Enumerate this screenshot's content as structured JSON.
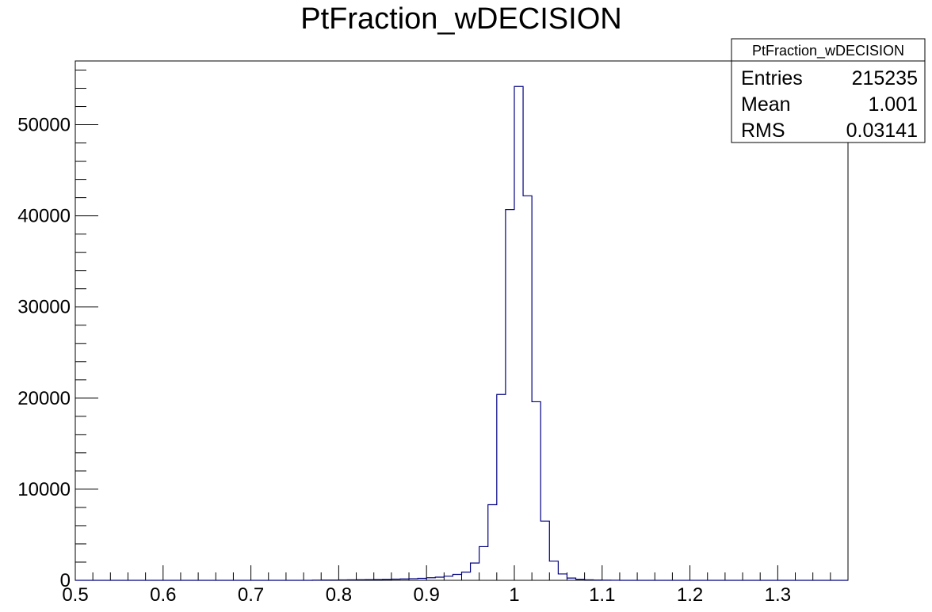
{
  "chart_data": {
    "type": "bar",
    "histogram": true,
    "title": "PtFraction_wDECISION",
    "xlabel": "",
    "ylabel": "",
    "xlim": [
      0.5,
      1.38
    ],
    "ylim": [
      0,
      57000
    ],
    "bin_width": 0.01,
    "first_bin_low_edge": 0.5,
    "x_ticks": [
      "0.5",
      "0.6",
      "0.7",
      "0.8",
      "0.9",
      "1",
      "1.1",
      "1.2",
      "1.3"
    ],
    "y_ticks": [
      "0",
      "10000",
      "20000",
      "30000",
      "40000",
      "50000"
    ],
    "values": [
      0,
      0,
      0,
      0,
      0,
      0,
      0,
      0,
      0,
      0,
      0,
      0,
      0,
      0,
      0,
      0,
      0,
      0,
      0,
      0,
      0,
      0,
      0,
      0,
      0,
      0,
      0,
      20,
      30,
      40,
      50,
      60,
      70,
      80,
      90,
      110,
      130,
      150,
      180,
      220,
      280,
      350,
      450,
      650,
      900,
      1900,
      3700,
      8300,
      20400,
      40700,
      54200,
      42200,
      19600,
      6500,
      2100,
      700,
      250,
      120,
      60,
      30,
      20,
      10,
      0,
      0,
      0,
      0,
      0,
      0,
      0,
      0,
      0,
      0,
      0,
      0,
      0,
      0,
      0,
      0,
      0,
      0,
      0,
      0,
      0,
      0,
      0,
      0,
      0,
      0
    ],
    "grid": false,
    "legend": "stats box, top-right",
    "line_color": "#000080"
  },
  "stats_box": {
    "title": "PtFraction_wDECISION",
    "rows": [
      {
        "label": "Entries",
        "value": "215235"
      },
      {
        "label": "Mean",
        "value": "1.001"
      },
      {
        "label": "RMS",
        "value": "0.03141"
      }
    ]
  }
}
